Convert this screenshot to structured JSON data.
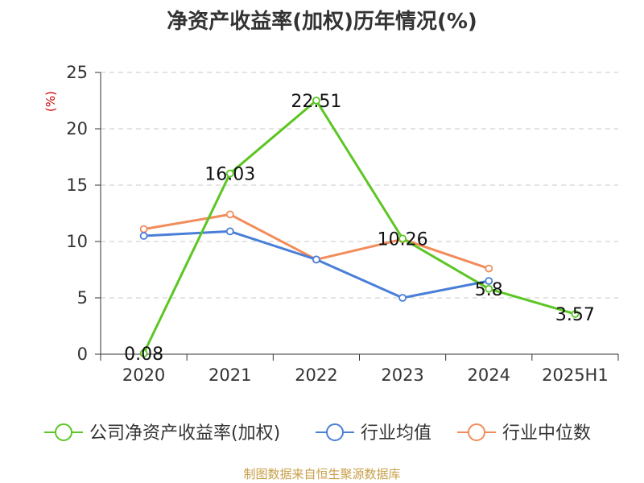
{
  "title": "净资产收益率(加权)历年情况(%)",
  "source": "制图数据来自恒生聚源数据库",
  "chart_data": {
    "type": "line",
    "title": "净资产收益率(加权)历年情况(%)",
    "unit_label": "(%)",
    "categories": [
      "2020",
      "2021",
      "2022",
      "2023",
      "2024",
      "2025H1"
    ],
    "ylim": [
      0,
      25
    ],
    "yticks": [
      0,
      5,
      10,
      15,
      20,
      25
    ],
    "grid": true,
    "legend_position": "bottom",
    "series": [
      {
        "name": "公司净资产收益率(加权)",
        "color": "#5cc624",
        "values": [
          0.08,
          16.03,
          22.51,
          10.26,
          5.8,
          3.57
        ],
        "labels": [
          "0.08",
          "16.03",
          "22.51",
          "10.26",
          "5.8",
          "3.57"
        ]
      },
      {
        "name": "行业均值",
        "color": "#4a7fd8",
        "values": [
          10.5,
          10.9,
          8.4,
          5.0,
          6.5,
          null
        ]
      },
      {
        "name": "行业中位数",
        "color": "#f28c5a",
        "values": [
          11.1,
          12.4,
          8.4,
          10.2,
          7.6,
          null
        ]
      }
    ]
  }
}
